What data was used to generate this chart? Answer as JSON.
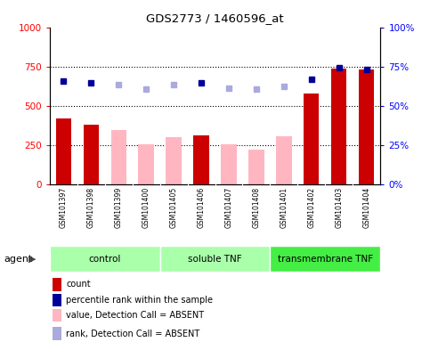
{
  "title": "GDS2773 / 1460596_at",
  "samples": [
    "GSM101397",
    "GSM101398",
    "GSM101399",
    "GSM101400",
    "GSM101405",
    "GSM101406",
    "GSM101407",
    "GSM101408",
    "GSM101401",
    "GSM101402",
    "GSM101403",
    "GSM101404"
  ],
  "count_values": [
    420,
    380,
    null,
    null,
    null,
    315,
    null,
    null,
    null,
    580,
    740,
    730
  ],
  "absent_value_values": [
    null,
    null,
    350,
    255,
    300,
    null,
    255,
    220,
    305,
    null,
    null,
    null
  ],
  "percentile_rank_present": [
    66,
    64.5,
    null,
    null,
    null,
    64.5,
    null,
    null,
    null,
    67,
    74.5,
    73
  ],
  "percentile_rank_absent": [
    null,
    null,
    63.5,
    61,
    63.5,
    null,
    61.5,
    61,
    62.5,
    null,
    null,
    null
  ],
  "groups": [
    {
      "label": "control",
      "start": 0,
      "end": 4,
      "color": "#AAFFAA"
    },
    {
      "label": "soluble TNF",
      "start": 4,
      "end": 8,
      "color": "#AAFFAA"
    },
    {
      "label": "transmembrane TNF",
      "start": 8,
      "end": 12,
      "color": "#44EE44"
    }
  ],
  "ylim_left": [
    0,
    1000
  ],
  "ylim_right": [
    0,
    100
  ],
  "yticks_left": [
    0,
    250,
    500,
    750,
    1000
  ],
  "yticks_right": [
    0,
    25,
    50,
    75,
    100
  ],
  "ytick_labels_left": [
    "0",
    "250",
    "500",
    "750",
    "1000"
  ],
  "ytick_labels_right": [
    "0%",
    "25%",
    "50%",
    "75%",
    "100%"
  ],
  "color_count": "#CC0000",
  "color_absent_value": "#FFB6C1",
  "color_rank_present": "#000099",
  "color_rank_absent": "#AAAADD",
  "agent_label": "agent",
  "legend_items": [
    {
      "color": "#CC0000",
      "label": "count"
    },
    {
      "color": "#000099",
      "label": "percentile rank within the sample"
    },
    {
      "color": "#FFB6C1",
      "label": "value, Detection Call = ABSENT"
    },
    {
      "color": "#AAAADD",
      "label": "rank, Detection Call = ABSENT"
    }
  ]
}
